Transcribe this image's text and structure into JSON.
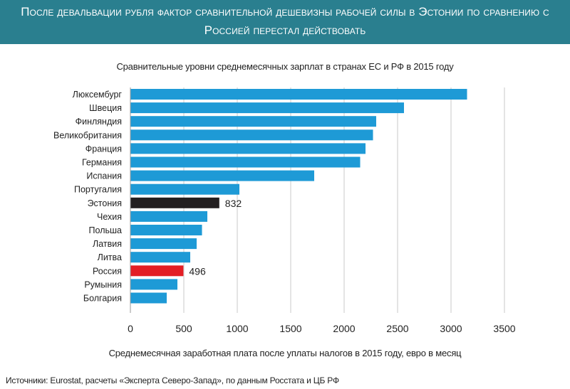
{
  "header": {
    "title": "После девальвации рубля фактор сравнительной дешевизны рабочей силы в Эстонии по сравнению с Россией перестал действовать"
  },
  "source": "Источники: Eurostat, расчеты «Эксперта Северо-Запад», по данным Росстата и ЦБ РФ",
  "colors": {
    "header_bg": "#2a7f8f",
    "bar_default": "#1e9ad6",
    "bar_estonia": "#231f20",
    "bar_russia": "#e31e24"
  },
  "chart_data": {
    "type": "bar",
    "orientation": "horizontal",
    "title": "Сравнительные уровни среднемесячных зарплат в странах ЕС и РФ в 2015 году",
    "xlabel": "Среднемесячная заработная плата после уплаты налогов в 2015 году, евро в месяц",
    "ylabel": "",
    "xlim": [
      0,
      3500
    ],
    "xticks": [
      0,
      500,
      1000,
      1500,
      2000,
      2500,
      3000,
      3500
    ],
    "grid": "vertical",
    "categories": [
      "Люксембург",
      "Швеция",
      "Финляндия",
      "Великобритания",
      "Франция",
      "Германия",
      "Испания",
      "Португалия",
      "Эстония",
      "Чехия",
      "Польша",
      "Латвия",
      "Литва",
      "Россия",
      "Румыния",
      "Болгария"
    ],
    "values": [
      3150,
      2560,
      2300,
      2270,
      2200,
      2150,
      1720,
      1020,
      832,
      720,
      670,
      620,
      560,
      496,
      440,
      340
    ],
    "highlight": {
      "Эстония": "bar_estonia",
      "Россия": "bar_russia"
    },
    "data_labels": {
      "Эстония": "832",
      "Россия": "496"
    }
  }
}
